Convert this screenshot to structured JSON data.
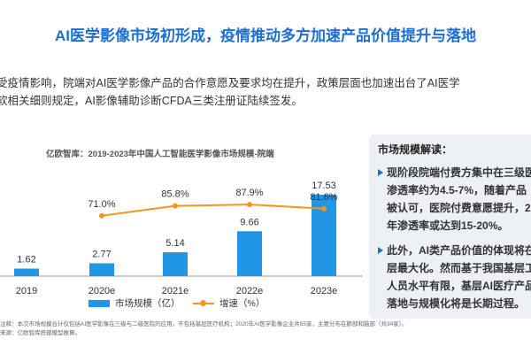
{
  "title": "AI医学影像市场初形成，疫情推动多方加速产品价值提升与落地",
  "intro": {
    "line1": "受疫情影响，院端对AI医学影像产品的合作意愿及要求均在提升，政策层面也加速出台了AI医学",
    "line2": "软相关细则规定，AI影像辅助诊断CFDA三类注册证陆续签发。"
  },
  "chart_title": "亿欧智库：2019-2023年中国人工智能医学影像市场规模-院端",
  "chart_data": {
    "type": "bar",
    "title": "亿欧智库：2019-2023年中国人工智能医学影像市场规模-院端",
    "categories": [
      "2019",
      "2020e",
      "2021e",
      "2022e",
      "2023e"
    ],
    "series": [
      {
        "name": "市场规模（亿）",
        "type": "bar",
        "values": [
          1.62,
          2.77,
          5.14,
          9.66,
          17.53
        ],
        "labels": [
          "1.62",
          "2.77",
          "5.14",
          "9.66",
          "17.53"
        ]
      },
      {
        "name": "增速（%）",
        "type": "line",
        "values": [
          null,
          71.0,
          85.8,
          87.9,
          81.6
        ],
        "labels": [
          "",
          "71.0%",
          "85.8%",
          "87.9%",
          "81.6%"
        ]
      }
    ],
    "ylim_bar": [
      0,
      20
    ],
    "ylim_line": [
      0,
      100
    ],
    "grid": false
  },
  "legend": {
    "bar": "市场规模（亿）",
    "line": "增速（%）"
  },
  "notes": {
    "line1": "注释：本次市场规模合计仅包括AI医学影像在三级与二级医院的应用，不包括基层医疗机构；2020年AI医学影像企业共55家，主要分布在肺部和脑部（共34家）。",
    "line2": "来源：亿欧智库搭建模型推算。"
  },
  "panel": {
    "title": "市场规模解读：",
    "item1": [
      "现阶段院端付费方集中在三级医",
      "渗透率约为4.5-7%，随着产品",
      "被认可，医院付费意愿提升，2",
      "年渗透率或达到15-20%。"
    ],
    "item2": [
      "此外，AI类产品价值的体现将在",
      "层最大化。然而基于我国基层工",
      "人员水平有限，基层AI医疗产品",
      "落地与规模化将是长期过程。"
    ]
  },
  "colors": {
    "accent": "#1b6fd1",
    "bar": "#2196e6",
    "line": "#f7941d",
    "panel_bg": "#edf0f4"
  }
}
